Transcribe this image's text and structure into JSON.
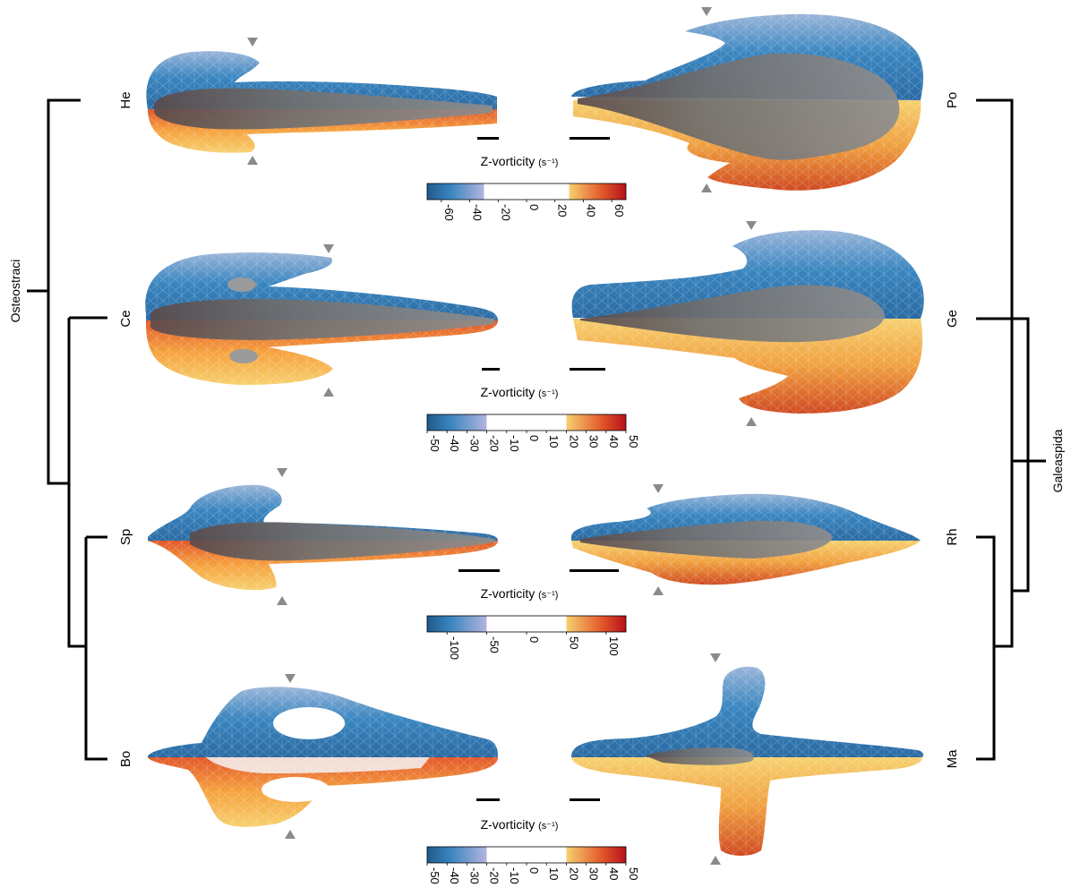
{
  "clades": {
    "left": "Osteostraci",
    "right": "Galeaspida"
  },
  "taxa": {
    "he": "He",
    "ce": "Ce",
    "sp": "Sp",
    "bo": "Bo",
    "po": "Po",
    "ge": "Ge",
    "rh": "Rh",
    "ma": "Ma"
  },
  "colorbars": [
    {
      "title": "Z-vorticity",
      "unit": "(s⁻¹)",
      "min": -70,
      "max": 70,
      "white_band": [
        -30,
        30
      ],
      "ticks": [
        "-60",
        "-40",
        "-20",
        "0",
        "20",
        "40",
        "60"
      ],
      "tick_values": [
        -60,
        -40,
        -20,
        0,
        20,
        40,
        60
      ]
    },
    {
      "title": "Z-vorticity",
      "unit": "(s⁻¹)",
      "min": -50,
      "max": 50,
      "white_band": [
        -20,
        20
      ],
      "ticks": [
        "-50",
        "-40",
        "-30",
        "-20",
        "-10",
        "0",
        "10",
        "20",
        "30",
        "40",
        "50"
      ],
      "tick_values": [
        -50,
        -40,
        -30,
        -20,
        -10,
        0,
        10,
        20,
        30,
        40,
        50
      ]
    },
    {
      "title": "Z-vorticity",
      "unit": "(s⁻¹)",
      "min": -125,
      "max": 125,
      "white_band": [
        -50,
        50
      ],
      "ticks": [
        "-100",
        "-50",
        "0",
        "50",
        "100"
      ],
      "tick_values": [
        -100,
        -50,
        0,
        50,
        100
      ]
    },
    {
      "title": "Z-vorticity",
      "unit": "(s⁻¹)",
      "min": -50,
      "max": 50,
      "white_band": [
        -20,
        20
      ],
      "ticks": [
        "-50",
        "-40",
        "-30",
        "-20",
        "-10",
        "0",
        "10",
        "20",
        "30",
        "40",
        "50"
      ],
      "tick_values": [
        -50,
        -40,
        -30,
        -20,
        -10,
        0,
        10,
        20,
        30,
        40,
        50
      ]
    }
  ],
  "colors": {
    "negative_dark": "#1f5a8c",
    "negative_mid": "#3a86c0",
    "negative_light": "#9ab6d9",
    "band_edge_neg": "#b4b4de",
    "band_edge_pos": "#f7d070",
    "positive_light": "#f6b24a",
    "positive_mid": "#e2572a",
    "positive_dark": "#b5121b",
    "body_grey": "#808080",
    "tree_line": "#000000",
    "arrowhead": "#8a8a8a"
  }
}
